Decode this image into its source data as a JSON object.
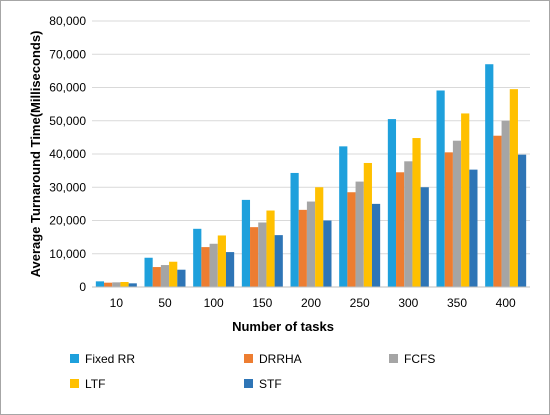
{
  "chart_data": {
    "type": "bar",
    "title": "",
    "xlabel": "Number of tasks",
    "ylabel": "Average Turnaround Time(Milliseconds)",
    "ylim": [
      0,
      80000
    ],
    "yticks": [
      0,
      10000,
      20000,
      30000,
      40000,
      50000,
      60000,
      70000,
      80000
    ],
    "ytick_labels": [
      "0",
      "10,000",
      "20,000",
      "30,000",
      "40,000",
      "50,000",
      "60,000",
      "70,000",
      "80,000"
    ],
    "grid": true,
    "legend_position": "bottom",
    "categories": [
      "10",
      "50",
      "100",
      "150",
      "200",
      "250",
      "300",
      "350",
      "400"
    ],
    "series": [
      {
        "name": "Fixed RR",
        "color": "#1ea0dc",
        "values": [
          1700,
          8800,
          17500,
          26200,
          34300,
          42300,
          50500,
          59100,
          67000
        ]
      },
      {
        "name": "DRRHA",
        "color": "#ed7d31",
        "values": [
          1300,
          6000,
          12000,
          18000,
          23200,
          28500,
          34500,
          40500,
          45500
        ]
      },
      {
        "name": "FCFS",
        "color": "#a5a5a5",
        "values": [
          1400,
          6600,
          13000,
          19400,
          25700,
          31700,
          37800,
          44000,
          50000
        ]
      },
      {
        "name": "LTF",
        "color": "#ffc000",
        "values": [
          1500,
          7600,
          15500,
          23000,
          30000,
          37300,
          44800,
          52200,
          59500
        ]
      },
      {
        "name": "STF",
        "color": "#2e75b6",
        "values": [
          1100,
          5200,
          10500,
          15600,
          20000,
          25000,
          30000,
          35300,
          39800
        ]
      }
    ]
  }
}
